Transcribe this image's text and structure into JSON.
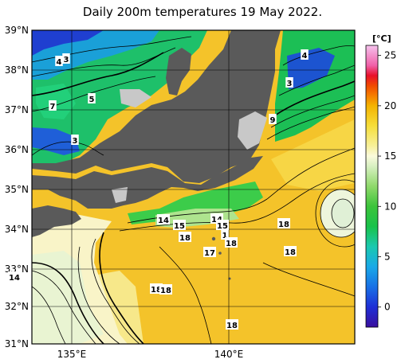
{
  "title": "Daily 200m temperatures 19 May 2022.",
  "colorbar": {
    "unit_label": "[°C]",
    "ticks": [
      "25",
      "20",
      "15",
      "10",
      "5",
      "0"
    ],
    "range": [
      -2,
      26
    ],
    "stops": [
      {
        "v": -2,
        "c": "#3a0f9e"
      },
      {
        "v": 0,
        "c": "#1f2fd6"
      },
      {
        "v": 2,
        "c": "#1870e6"
      },
      {
        "v": 4,
        "c": "#19a9e8"
      },
      {
        "v": 6,
        "c": "#1ac9b0"
      },
      {
        "v": 8,
        "c": "#19c24a"
      },
      {
        "v": 10,
        "c": "#3cc43a"
      },
      {
        "v": 12,
        "c": "#8fd96b"
      },
      {
        "v": 14,
        "c": "#d8f0c2"
      },
      {
        "v": 15,
        "c": "#fafadc"
      },
      {
        "v": 16,
        "c": "#f7f09a"
      },
      {
        "v": 18,
        "c": "#f6de3a"
      },
      {
        "v": 20,
        "c": "#f4b300"
      },
      {
        "v": 21,
        "c": "#f57e00"
      },
      {
        "v": 22,
        "c": "#f04a00"
      },
      {
        "v": 23,
        "c": "#e8102a"
      },
      {
        "v": 24,
        "c": "#f060a8"
      },
      {
        "v": 26,
        "c": "#f6c4ee"
      }
    ]
  },
  "axes": {
    "lat_labels": [
      "39°N",
      "38°N",
      "37°N",
      "36°N",
      "35°N",
      "34°N",
      "33°N",
      "32°N",
      "31°N"
    ],
    "lon_labels": [
      "135°E",
      "140°E"
    ],
    "lon_range": [
      134.2,
      142.0
    ],
    "lat_range": [
      31,
      39
    ]
  },
  "contour_labels": [
    "4",
    "3",
    "5",
    "7",
    "3",
    "4",
    "3",
    "9",
    "14",
    "15",
    "14",
    "15",
    "18",
    "1",
    "18",
    "17",
    "18",
    "18",
    "14",
    "18",
    "18",
    "18"
  ]
}
